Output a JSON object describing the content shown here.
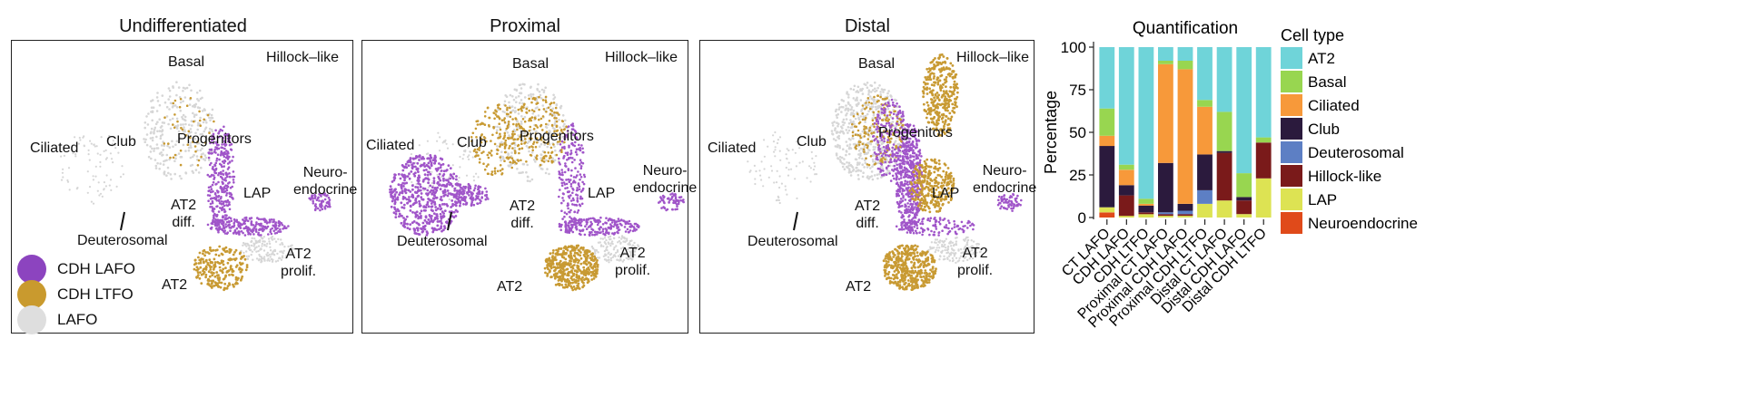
{
  "umap": {
    "panels": [
      {
        "title": "Undifferentiated",
        "labels": {
          "basal": "Basal",
          "hillock": "Hillock–like",
          "ciliated": "Ciliated",
          "club": "Club",
          "progenitors": "Progenitors",
          "neuro": "Neuro-\nendocrine",
          "lap": "LAP",
          "at2diff": "AT2\ndiff.",
          "deuterosomal": "Deuterosomal",
          "at2prolif": "AT2\nprolif.",
          "at2": "AT2"
        }
      },
      {
        "title": "Proximal",
        "labels": {
          "basal": "Basal",
          "hillock": "Hillock–like",
          "ciliated": "Ciliated",
          "club": "Club",
          "progenitors": "Progenitors",
          "neuro": "Neuro-\nendocrine",
          "lap": "LAP",
          "at2diff": "AT2\ndiff.",
          "deuterosomal": "Deuterosomal",
          "at2prolif": "AT2\nprolif.",
          "at2": "AT2"
        }
      },
      {
        "title": "Distal",
        "labels": {
          "basal": "Basal",
          "hillock": "Hillock–like",
          "ciliated": "Ciliated",
          "club": "Club",
          "progenitors": "Progenitors",
          "neuro": "Neuro-\nendocrine",
          "lap": "LAP",
          "at2diff": "AT2\ndiff.",
          "deuterosomal": "Deuterosomal",
          "at2prolif": "AT2\nprolif.",
          "at2": "AT2"
        }
      }
    ],
    "legend": [
      {
        "label": "CDH LAFO",
        "color": "#8c44bf"
      },
      {
        "label": "CDH LTFO",
        "color": "#c99a2e"
      },
      {
        "label": "LAFO",
        "color": "#dedede"
      }
    ],
    "colors": {
      "purple": "#a055c9",
      "gold": "#c89a33",
      "grey": "#d6d6d6"
    }
  },
  "chart_data": {
    "type": "bar",
    "stacked": true,
    "title": "Quantification",
    "ylabel": "Percentage",
    "xlabel": "",
    "ylim": [
      0,
      100
    ],
    "yticks": [
      0,
      25,
      50,
      75,
      100
    ],
    "legend_title": "Cell type",
    "legend_placement": "right",
    "categories": [
      "CT LAFO",
      "CDH LAFO",
      "CDH LTFO",
      "Proximal CT LAFO",
      "Proximal CDH LAFO",
      "Proximal CDH LTFO",
      "Distal CT LAFO",
      "Distal CDH LAFO",
      "Distal CDH LTFO"
    ],
    "series": [
      {
        "name": "Neuroendocrine",
        "color": "#e04a1a",
        "values": [
          3,
          0,
          0,
          0,
          0,
          0,
          0,
          0,
          0
        ]
      },
      {
        "name": "LAP",
        "color": "#dde353",
        "values": [
          3,
          1,
          2,
          1,
          1,
          8,
          10,
          2,
          23
        ]
      },
      {
        "name": "Hillock-like",
        "color": "#7a1a1a",
        "values": [
          0,
          12,
          1,
          1,
          1,
          0,
          28,
          8,
          21
        ]
      },
      {
        "name": "Deuterosomal",
        "color": "#5d7fc4",
        "values": [
          0,
          0,
          0,
          1,
          2,
          8,
          0,
          0,
          0
        ]
      },
      {
        "name": "Club",
        "color": "#2b1a3d",
        "values": [
          36,
          6,
          4,
          29,
          4,
          21,
          1,
          2,
          0
        ]
      },
      {
        "name": "Ciliated",
        "color": "#f7993a",
        "values": [
          6,
          9,
          1,
          58,
          79,
          28,
          0,
          0,
          0
        ]
      },
      {
        "name": "Basal",
        "color": "#98d650",
        "values": [
          16,
          3,
          3,
          2,
          5,
          4,
          23,
          14,
          3
        ]
      },
      {
        "name": "AT2",
        "color": "#6fd4d9",
        "values": [
          36,
          69,
          89,
          8,
          8,
          31,
          38,
          74,
          53
        ]
      }
    ],
    "legend_order": [
      "AT2",
      "Basal",
      "Ciliated",
      "Club",
      "Deuterosomal",
      "Hillock-like",
      "LAP",
      "Neuroendocrine"
    ]
  }
}
